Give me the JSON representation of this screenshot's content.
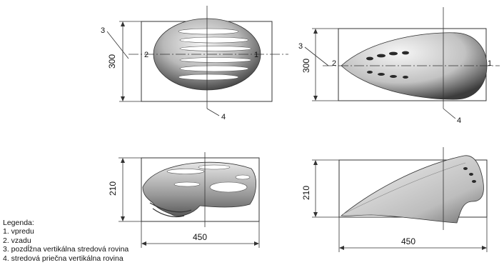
{
  "views": {
    "top_a": {
      "height_dim": "300",
      "callout_3": "3",
      "callout_2": "2",
      "callout_1": "1",
      "callout_4": "4"
    },
    "top_b": {
      "height_dim": "300",
      "callout_3": "3",
      "callout_2": "2",
      "callout_1": "1",
      "callout_4": "4"
    },
    "side_a": {
      "height_dim": "210",
      "width_dim": "450"
    },
    "side_b": {
      "height_dim": "210",
      "width_dim": "450"
    }
  },
  "legend": {
    "title": "Legenda:",
    "items": [
      "1. vpredu",
      "2. vzadu",
      "3. pozdĺžna vertikálna stredová rovina",
      "4. stredová priečna vertikálna rovina"
    ]
  }
}
